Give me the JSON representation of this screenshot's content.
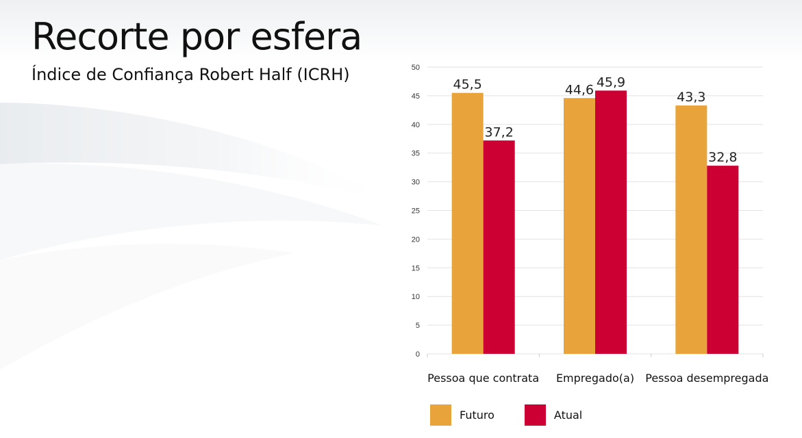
{
  "header": {
    "title": "Recorte por esfera",
    "subtitle": "Índice de Confiança Robert Half (ICRH)"
  },
  "colors": {
    "futuro": "#E8A33A",
    "atual": "#CC0033",
    "grid": "#E2E2E2",
    "axis_text": "#333333"
  },
  "chart_data": {
    "type": "bar",
    "categories": [
      "Pessoa que contrata",
      "Empregado(a)",
      "Pessoa desempregada"
    ],
    "series": [
      {
        "name": "Futuro",
        "values": [
          45.5,
          44.6,
          43.3
        ],
        "labels": [
          "45,5",
          "44,6",
          "43,3"
        ]
      },
      {
        "name": "Atual",
        "values": [
          37.2,
          45.9,
          32.8
        ],
        "labels": [
          "37,2",
          "45,9",
          "32,8"
        ]
      }
    ],
    "yticks": [
      0,
      5,
      10,
      15,
      20,
      25,
      30,
      35,
      40,
      45,
      50
    ],
    "ylim": [
      0,
      50
    ],
    "grid": true,
    "legend_position": "bottom-left"
  }
}
